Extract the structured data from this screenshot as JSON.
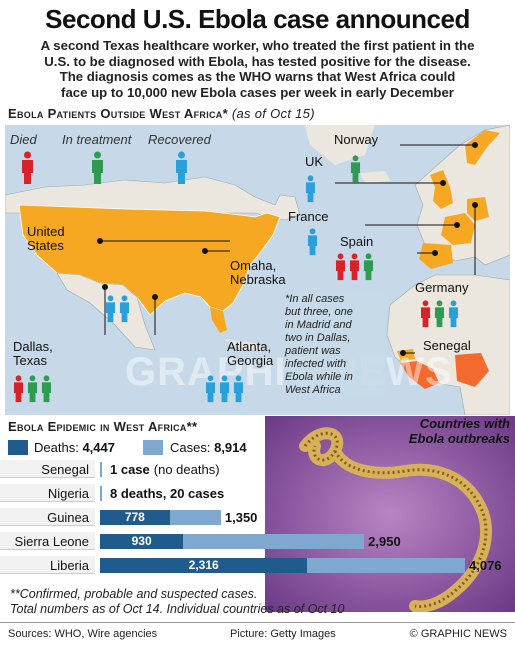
{
  "headline": "Second U.S. Ebola case announced",
  "standfirst": [
    "A second Texas healthcare worker, who treated the first patient in the",
    "U.S. to be diagnosed with Ebola, has tested positive for the disease.",
    "The diagnosis comes as the WHO warns that West Africa could",
    "face up to 10,000 new Ebola cases per week in early December"
  ],
  "map_section": {
    "title": "Ebola Patients Outside West Africa*",
    "date": "(as of Oct 15)"
  },
  "legend": {
    "died": "Died",
    "treatment": "In treatment",
    "recovered": "Recovered"
  },
  "colors": {
    "died": "#d8222a",
    "treatment": "#2e9a52",
    "recovered": "#2b9fd9",
    "land": "#f7a823",
    "other_land": "#ebe7de",
    "sea": "#c7d9e8",
    "outbreak": "#f26a2e",
    "deaths_bar": "#1f5b8c",
    "cases_bar": "#7ea8cf"
  },
  "places": {
    "us": [
      "United",
      "States"
    ],
    "omaha": [
      "Omaha,",
      "Nebraska"
    ],
    "dallas": [
      "Dallas,",
      "Texas"
    ],
    "atlanta": [
      "Atlanta,",
      "Georgia"
    ],
    "norway": "Norway",
    "uk": "UK",
    "france": "France",
    "spain": "Spain",
    "germany": "Germany",
    "senegal": "Senegal"
  },
  "map_note": [
    "*In all cases",
    "but three, one",
    "in Madrid and",
    "two in Dallas,",
    "patient was",
    "infected with",
    "Ebola while in",
    "West Africa"
  ],
  "outbreak_label": [
    "Countries with",
    "Ebola outbreaks"
  ],
  "watermark": "GRAPHIC NEWS",
  "epidemic": {
    "title": "Ebola Epidemic in West Africa**",
    "deaths_label": "Deaths:",
    "deaths_total": "4,447",
    "cases_label": "Cases:",
    "cases_total": "8,914",
    "rows": [
      {
        "country": "Senegal",
        "text": "1 case",
        "text_sub": "(no deaths)",
        "deaths": 0,
        "cases": 1
      },
      {
        "country": "Nigeria",
        "text": "8 deaths, 20 cases",
        "deaths": 8,
        "cases": 20
      },
      {
        "country": "Guinea",
        "deaths_label": "778",
        "cases_label": "1,350",
        "deaths": 778,
        "cases": 1350
      },
      {
        "country": "Sierra Leone",
        "deaths_label": "930",
        "cases_label": "2,950",
        "deaths": 930,
        "cases": 2950
      },
      {
        "country": "Liberia",
        "deaths_label": "2,316",
        "cases_label": "4,076",
        "deaths": 2316,
        "cases": 4076
      }
    ],
    "footnote": [
      "**Confirmed, probable and suspected cases.",
      "Total numbers as of Oct 14. Individual countries as of Oct 10"
    ]
  },
  "chart_data": {
    "type": "bar",
    "title": "Ebola Epidemic in West Africa**",
    "categories": [
      "Senegal",
      "Nigeria",
      "Guinea",
      "Sierra Leone",
      "Liberia"
    ],
    "series": [
      {
        "name": "Deaths",
        "values": [
          0,
          8,
          778,
          930,
          2316
        ]
      },
      {
        "name": "Cases",
        "values": [
          1,
          20,
          1350,
          2950,
          4076
        ]
      }
    ]
  },
  "footer": {
    "sources": "Sources: WHO, Wire agencies",
    "picture": "Picture: Getty Images",
    "credit": "© GRAPHIC NEWS"
  }
}
